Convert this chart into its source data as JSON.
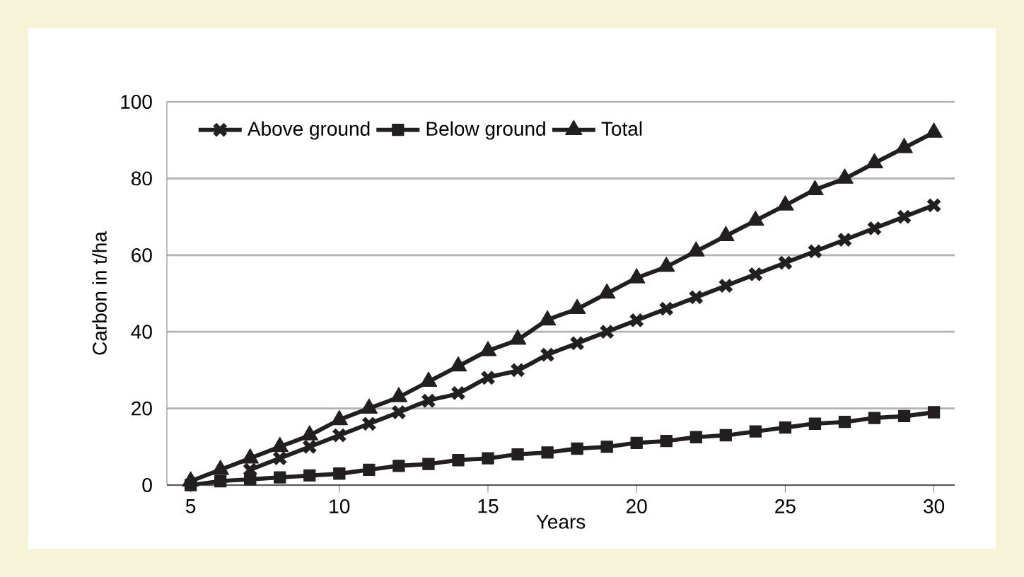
{
  "chart_data": {
    "type": "line",
    "xlabel": "Years",
    "ylabel": "Carbon in t/ha",
    "x": [
      5,
      6,
      7,
      8,
      9,
      10,
      11,
      12,
      13,
      14,
      15,
      16,
      17,
      18,
      19,
      20,
      21,
      22,
      23,
      24,
      25,
      26,
      27,
      28,
      29,
      30
    ],
    "series": [
      {
        "name": "Above ground",
        "color": "#231f20",
        "marker": "cross",
        "values": [
          null,
          null,
          4,
          7,
          10,
          13,
          16,
          19,
          22,
          24,
          28,
          30,
          34,
          37,
          40,
          43,
          46,
          49,
          52,
          55,
          58,
          61,
          64,
          67,
          70,
          73
        ]
      },
      {
        "name": "Below ground",
        "color": "#231f20",
        "marker": "square",
        "values": [
          0,
          1,
          1.5,
          2,
          2.5,
          3,
          4,
          5,
          5.5,
          6.5,
          7,
          8,
          8.5,
          9.5,
          10,
          11,
          11.5,
          12.5,
          13,
          14,
          15,
          16,
          16.5,
          17.5,
          18,
          19
        ]
      },
      {
        "name": "Total",
        "color": "#231f20",
        "marker": "triangle",
        "values": [
          1,
          4,
          7,
          10,
          13,
          17,
          20,
          23,
          27,
          31,
          35,
          38,
          43,
          46,
          50,
          54,
          57,
          61,
          65,
          69,
          73,
          77,
          80,
          84,
          88,
          92
        ]
      }
    ],
    "xlim": [
      4.2,
      30.7
    ],
    "ylim": [
      0,
      100
    ],
    "xticks": [
      5,
      10,
      15,
      20,
      25,
      30
    ],
    "yticks": [
      0,
      20,
      40,
      60,
      80,
      100
    ],
    "grid": "y",
    "legend": "top left",
    "line_style": "solid"
  }
}
